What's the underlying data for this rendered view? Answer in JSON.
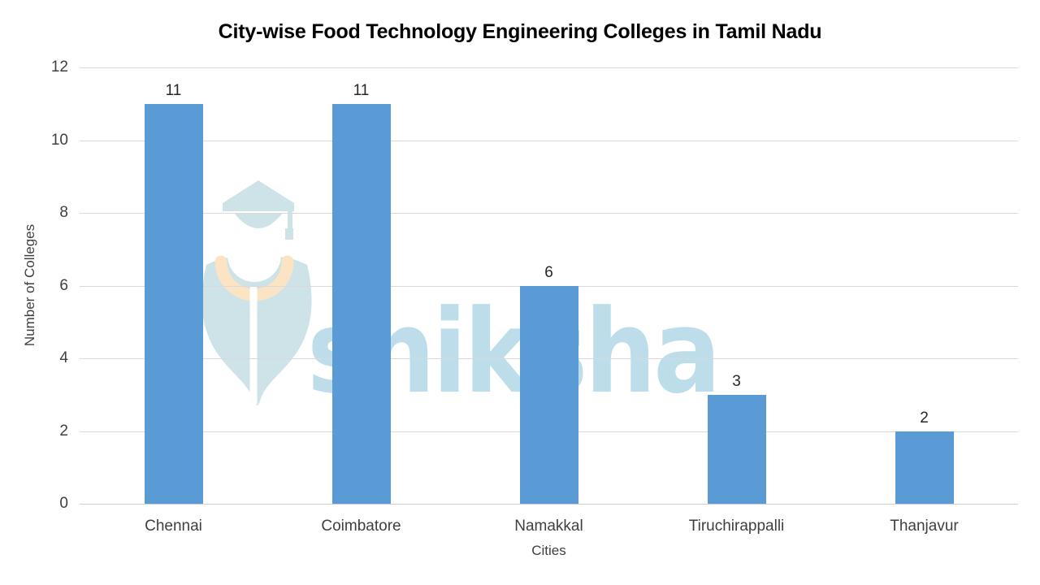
{
  "chart_data": {
    "type": "bar",
    "title": "City-wise Food Technology Engineering Colleges in Tamil Nadu",
    "categories": [
      "Chennai",
      "Coimbatore",
      "Namakkal",
      "Tiruchirappalli",
      "Thanjavur"
    ],
    "values": [
      11,
      11,
      6,
      3,
      2
    ],
    "data_labels": [
      "11",
      "11",
      "6",
      "3",
      "2"
    ],
    "xlabel": "Cities",
    "ylabel": "Number of Colleges",
    "ylim": [
      0,
      12
    ],
    "yticks": [
      0,
      2,
      4,
      6,
      8,
      10,
      12
    ],
    "grid": true,
    "legend_position": "none",
    "colors": {
      "bar": "#5B9BD5",
      "gridline": "#D9D9D9",
      "axis_line": "#CFCDCD",
      "tick_label": "#3F3F3F",
      "data_label": "#262626",
      "title": "#000000"
    }
  },
  "watermark": {
    "name": "shiksha-logo",
    "text": "shiksha",
    "colors": {
      "icon": "#CEE3E8",
      "accent": "#FBE4C3",
      "text": "#BCDDE9"
    }
  }
}
